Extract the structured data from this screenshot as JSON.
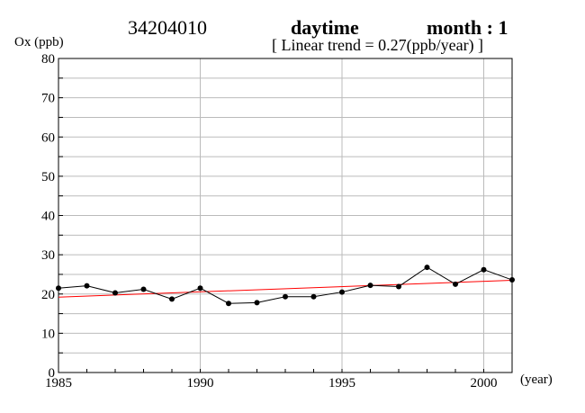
{
  "header": {
    "station": "34204010",
    "period": "daytime",
    "month": "month : 1",
    "trend": "[ Linear trend = 0.27(ppb/year) ]"
  },
  "chart_data": {
    "type": "line",
    "ylabel": "Ox (ppb)",
    "xunit": "(year)",
    "xlim": [
      1985,
      2001
    ],
    "ylim": [
      0,
      80
    ],
    "xticks": [
      1985,
      1990,
      1995,
      2000
    ],
    "yticks": [
      0,
      10,
      20,
      30,
      40,
      50,
      60,
      70,
      80
    ],
    "grid": true,
    "series": [
      {
        "x": [
          1985,
          1986,
          1987,
          1988,
          1989,
          1990,
          1991,
          1992,
          1993,
          1994,
          1995,
          1996,
          1997,
          1998,
          1999,
          2000,
          2001
        ],
        "values": [
          21.5,
          22.1,
          20.3,
          21.2,
          18.7,
          21.5,
          17.6,
          17.8,
          19.3,
          19.3,
          20.5,
          22.2,
          21.9,
          26.8,
          22.5,
          26.2,
          23.6
        ],
        "color": "#000000"
      }
    ],
    "trendline": {
      "x": [
        1985,
        2001
      ],
      "values": [
        19.2,
        23.5
      ],
      "color": "#ff0000"
    }
  }
}
